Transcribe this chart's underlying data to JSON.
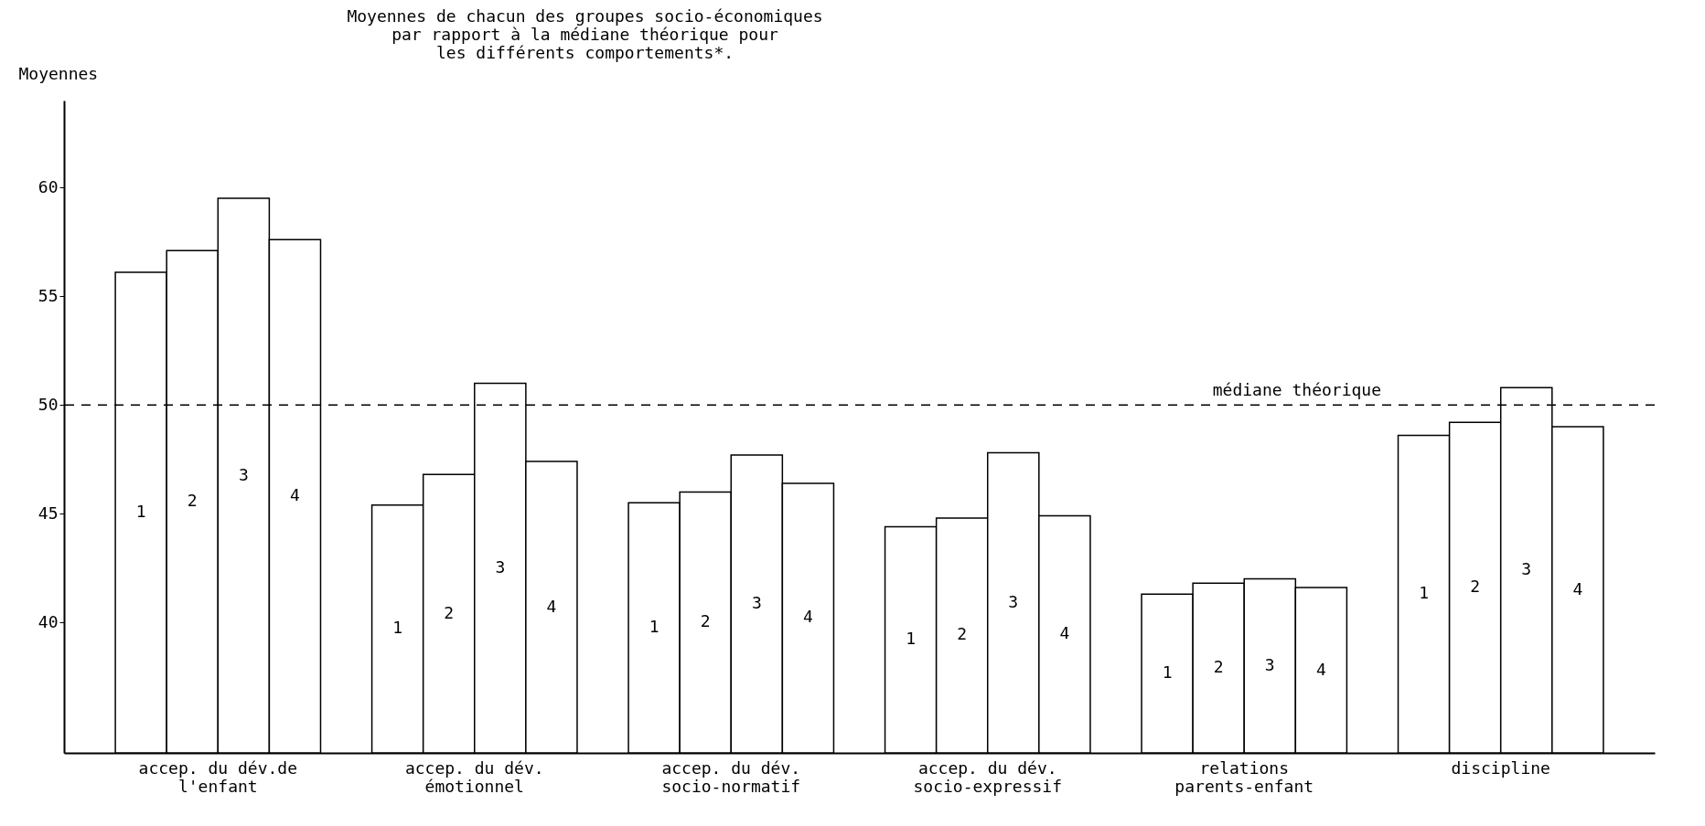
{
  "chart_data": {
    "type": "bar",
    "title": "Moyennes de chacun des groupes socio-économiques\npar rapport à la médiane théorique pour\nles différents comportements*.",
    "ylabel": "Moyennes",
    "categories": [
      "accep. du dév.de\nl'enfant",
      "accep. du dév.\némotionnel",
      "accep. du dév.\nsocio-normatif",
      "accep. du dév.\nsocio-expressif",
      "relations\nparents-enfant",
      "discipline"
    ],
    "series": [
      {
        "name": "1",
        "color": "#ffffff",
        "values": [
          56.1,
          45.4,
          45.5,
          44.4,
          41.3,
          48.6
        ]
      },
      {
        "name": "2",
        "color": "#ffffff",
        "values": [
          57.1,
          46.8,
          46.0,
          44.8,
          41.8,
          49.2
        ]
      },
      {
        "name": "3",
        "color": "#ffffff",
        "values": [
          59.5,
          51.0,
          47.7,
          47.8,
          42.0,
          50.8
        ]
      },
      {
        "name": "4",
        "color": "#ffffff",
        "values": [
          57.6,
          47.4,
          46.4,
          44.9,
          41.6,
          49.0
        ]
      }
    ],
    "ylim": [
      34,
      64
    ],
    "yticks": [
      40,
      45,
      50,
      55,
      60
    ],
    "grid": false,
    "legend": false,
    "ref_lines": [
      {
        "axis": "y",
        "value": 50,
        "label": "médiane théorique",
        "line_style": "dashed"
      }
    ]
  }
}
